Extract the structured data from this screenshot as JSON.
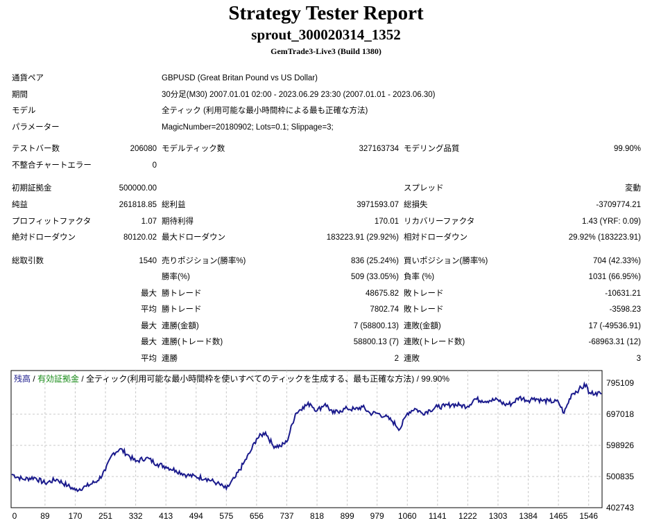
{
  "report": {
    "title": "Strategy Tester Report",
    "subtitle": "sprout_300020314_1352",
    "build": "GemTrade3-Live3 (Build 1380)"
  },
  "info": {
    "pair_label": "通貨ペア",
    "pair_value": "GBPUSD (Great Britan Pound vs US Dollar)",
    "period_label": "期間",
    "period_value": "30分足(M30) 2007.01.01 02:00 - 2023.06.29 23:30 (2007.01.01 - 2023.06.30)",
    "model_label": "モデル",
    "model_value": "全ティック (利用可能な最小時間枠による最も正確な方法)",
    "params_label": "パラメーター",
    "params_value": "MagicNumber=20180902; Lots=0.1; Slippage=3;"
  },
  "stats": {
    "bars_label": "テストバー数",
    "bars_value": "206080",
    "ticks_label": "モデルティック数",
    "ticks_value": "327163734",
    "quality_label": "モデリング品質",
    "quality_value": "99.90%",
    "mismatch_label": "不整合チャートエラー",
    "mismatch_value": "0",
    "deposit_label": "初期証拠金",
    "deposit_value": "500000.00",
    "spread_label": "スプレッド",
    "spread_value": "変動",
    "net_label": "純益",
    "net_value": "261818.85",
    "gross_profit_label": "総利益",
    "gross_profit_value": "3971593.07",
    "gross_loss_label": "総損失",
    "gross_loss_value": "-3709774.21",
    "pf_label": "プロフィットファクタ",
    "pf_value": "1.07",
    "expected_label": "期待利得",
    "expected_value": "170.01",
    "recovery_label": "リカバリーファクタ",
    "recovery_value": "1.43 (YRF: 0.09)",
    "abs_dd_label": "絶対ドローダウン",
    "abs_dd_value": "80120.02",
    "max_dd_label": "最大ドローダウン",
    "max_dd_value": "183223.91 (29.92%)",
    "rel_dd_label": "相対ドローダウン",
    "rel_dd_value": "29.92% (183223.91)",
    "total_trades_label": "総取引数",
    "total_trades_value": "1540",
    "short_label": "売りポジション(勝率%)",
    "short_value": "836 (25.24%)",
    "long_label": "買いポジション(勝率%)",
    "long_value": "704 (42.33%)",
    "win_pct_label": "勝率(%)",
    "win_pct_value": "509 (33.05%)",
    "loss_pct_label": "負率 (%)",
    "loss_pct_value": "1031 (66.95%)",
    "max_label": "最大",
    "avg_label": "平均",
    "max_win_label": "勝トレード",
    "max_win_value": "48675.82",
    "max_loss_label": "敗トレード",
    "max_loss_value": "-10631.21",
    "avg_win_label": "勝トレード",
    "avg_win_value": "7802.74",
    "avg_loss_label": "敗トレード",
    "avg_loss_value": "-3598.23",
    "max_consec_win_amt_label": "連勝(金額)",
    "max_consec_win_amt_value": "7 (58800.13)",
    "max_consec_loss_amt_label": "連敗(金額)",
    "max_consec_loss_amt_value": "17 (-49536.91)",
    "max_consec_win_cnt_label": "連勝(トレード数)",
    "max_consec_win_cnt_value": "58800.13 (7)",
    "max_consec_loss_cnt_label": "連敗(トレード数)",
    "max_consec_loss_cnt_value": "-68963.31 (12)",
    "avg_consec_win_label": "連勝",
    "avg_consec_win_value": "2",
    "avg_consec_loss_label": "連敗",
    "avg_consec_loss_value": "3"
  },
  "chart_legend": {
    "balance": "残高",
    "sep1": " / ",
    "equity": "有効証拠金",
    "sep2": " / ",
    "rest": "全ティック(利用可能な最小時間枠を使いすべてのティックを生成する、最も正確な方法) / 99.90%"
  },
  "colors": {
    "balance": "#1a1a8c",
    "equity": "#1a8c1a",
    "grid": "#c8c8c8"
  },
  "chart_data": {
    "type": "line",
    "title": "",
    "xlabel": "",
    "ylabel": "",
    "grid": true,
    "ylim": [
      402743,
      795109
    ],
    "xlim": [
      0,
      1580
    ],
    "yticks": [
      "795109",
      "697018",
      "598926",
      "500835",
      "402743"
    ],
    "xticks": [
      "0",
      "89",
      "170",
      "251",
      "332",
      "413",
      "494",
      "575",
      "656",
      "737",
      "818",
      "899",
      "979",
      "1060",
      "1141",
      "1222",
      "1303",
      "1384",
      "1465",
      "1546"
    ],
    "series": [
      {
        "x": [
          0,
          30,
          60,
          89,
          120,
          150,
          170,
          200,
          230,
          251,
          270,
          290,
          310,
          332,
          360,
          390,
          413,
          440,
          470,
          494,
          520,
          550,
          575,
          600,
          620,
          640,
          656,
          680,
          700,
          720,
          737,
          760,
          780,
          800,
          818,
          840,
          860,
          880,
          899,
          920,
          940,
          960,
          979,
          1000,
          1020,
          1040,
          1060,
          1080,
          1100,
          1120,
          1141,
          1160,
          1180,
          1200,
          1222,
          1240,
          1260,
          1280,
          1303,
          1320,
          1340,
          1360,
          1384,
          1400,
          1420,
          1440,
          1465,
          1480,
          1500,
          1520,
          1540,
          1546,
          1565,
          1580
        ],
        "values": [
          508000,
          492000,
          498000,
          480000,
          492000,
          472000,
          458000,
          470000,
          488000,
          520000,
          572000,
          588000,
          570000,
          548000,
          560000,
          540000,
          532000,
          520000,
          505000,
          500000,
          495000,
          480000,
          462000,
          500000,
          540000,
          580000,
          620000,
          640000,
          598000,
          596000,
          610000,
          698000,
          720000,
          730000,
          708000,
          730000,
          700000,
          708000,
          715000,
          712000,
          720000,
          700000,
          700000,
          690000,
          675000,
          650000,
          700000,
          715000,
          700000,
          710000,
          720000,
          722000,
          728000,
          725000,
          722000,
          745000,
          740000,
          740000,
          742000,
          728000,
          730000,
          750000,
          740000,
          748000,
          740000,
          738000,
          735000,
          700000,
          760000,
          775000,
          790000,
          762000,
          765000,
          760000
        ]
      }
    ]
  }
}
